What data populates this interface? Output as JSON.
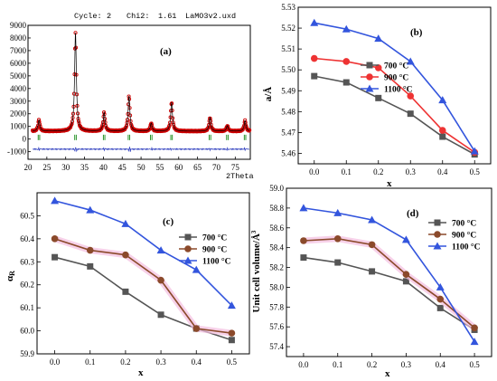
{
  "chart_data": [
    {
      "panel": "(a)",
      "type": "line",
      "header": {
        "cycle_label": "Cycle:",
        "cycle": "2",
        "chi2_label": "Chi2:",
        "chi2": "1.61",
        "file": "LaMO3v2.uxd"
      },
      "xlabel": "2Theta",
      "xlim": [
        20,
        79
      ],
      "ylim": [
        -1600,
        9000
      ],
      "x_ticks": [
        20,
        25,
        30,
        35,
        40,
        45,
        50,
        55,
        60,
        65,
        70,
        75
      ],
      "y_ticks": [
        -1000,
        0,
        1000,
        2000,
        3000,
        4000,
        5000,
        6000,
        7000,
        8000,
        9000
      ],
      "background": 620,
      "peaks": [
        {
          "x": 22.9,
          "y": 1500
        },
        {
          "x": 32.6,
          "y": 8400
        },
        {
          "x": 40.2,
          "y": 2100
        },
        {
          "x": 46.8,
          "y": 3400
        },
        {
          "x": 52.7,
          "y": 1250
        },
        {
          "x": 58.1,
          "y": 2900
        },
        {
          "x": 68.3,
          "y": 1700
        },
        {
          "x": 72.9,
          "y": 1050
        },
        {
          "x": 77.6,
          "y": 1450
        }
      ],
      "difference_level": -800,
      "bragg_marks_level": 130,
      "colors": {
        "observed": "#cc0000",
        "calculated": "#000000",
        "difference": "#2233bb",
        "bragg": "#118811"
      }
    },
    {
      "panel": "(b)",
      "type": "line",
      "xlabel": "x",
      "ylabel": "a/Å",
      "x": [
        0.0,
        0.1,
        0.2,
        0.3,
        0.4,
        0.5
      ],
      "x_ticks": [
        "0.0",
        "0.1",
        "0.2",
        "0.3",
        "0.4",
        "0.5"
      ],
      "xlim": [
        -0.05,
        0.55
      ],
      "ylim": [
        5.455,
        5.53
      ],
      "y_ticks": [
        "5.46",
        "5.47",
        "5.48",
        "5.49",
        "5.50",
        "5.51",
        "5.52",
        "5.53"
      ],
      "series": [
        {
          "name": "700 °C",
          "values": [
            5.497,
            5.494,
            5.4865,
            5.479,
            5.468,
            5.4595
          ],
          "color": "#555555",
          "marker": "square"
        },
        {
          "name": "900 °C",
          "values": [
            5.5055,
            5.504,
            5.501,
            5.4875,
            5.471,
            5.4605
          ],
          "color": "#ee3333",
          "marker": "circle"
        },
        {
          "name": "1100 °C",
          "values": [
            5.5225,
            5.5195,
            5.515,
            5.504,
            5.4855,
            5.461
          ],
          "color": "#3355dd",
          "marker": "triangle"
        }
      ]
    },
    {
      "panel": "(c)",
      "type": "line",
      "xlabel": "x",
      "ylabel": "αR",
      "x": [
        0.0,
        0.1,
        0.2,
        0.3,
        0.4,
        0.5
      ],
      "x_ticks": [
        "0.0",
        "0.1",
        "0.2",
        "0.3",
        "0.4",
        "0.5"
      ],
      "xlim": [
        -0.05,
        0.55
      ],
      "ylim": [
        59.9,
        60.6
      ],
      "y_ticks": [
        "59.9",
        "60.0",
        "60.1",
        "60.2",
        "60.3",
        "60.4",
        "60.5"
      ],
      "series": [
        {
          "name": "700 °C",
          "values": [
            60.32,
            60.28,
            60.17,
            60.07,
            60.01,
            59.96
          ],
          "color": "#555555",
          "marker": "square"
        },
        {
          "name": "900 °C",
          "values": [
            60.4,
            60.35,
            60.33,
            60.22,
            60.01,
            59.99
          ],
          "color": "#8b4a2b",
          "marker": "circle"
        },
        {
          "name": "1100 °C",
          "values": [
            60.565,
            60.525,
            60.465,
            60.35,
            60.265,
            60.11
          ],
          "color": "#3355dd",
          "marker": "triangle"
        }
      ]
    },
    {
      "panel": "(d)",
      "type": "line",
      "xlabel": "x",
      "ylabel": "Unit cell volume/Å3",
      "x": [
        0.0,
        0.1,
        0.2,
        0.3,
        0.4,
        0.5
      ],
      "x_ticks": [
        "0.0",
        "0.1",
        "0.2",
        "0.3",
        "0.4",
        "0.5"
      ],
      "xlim": [
        -0.05,
        0.55
      ],
      "ylim": [
        57.3,
        59.0
      ],
      "y_ticks": [
        "57.4",
        "57.6",
        "57.8",
        "58.0",
        "58.2",
        "58.4",
        "58.6",
        "58.8",
        "59.0"
      ],
      "series": [
        {
          "name": "700 °C",
          "values": [
            58.3,
            58.25,
            58.16,
            58.06,
            57.79,
            57.57
          ],
          "color": "#555555",
          "marker": "square"
        },
        {
          "name": "900 °C",
          "values": [
            58.47,
            58.49,
            58.43,
            58.13,
            57.88,
            57.59
          ],
          "color": "#8b4a2b",
          "marker": "circle"
        },
        {
          "name": "1100 °C",
          "values": [
            58.8,
            58.75,
            58.68,
            58.48,
            58.0,
            57.45
          ],
          "color": "#3355dd",
          "marker": "triangle"
        }
      ]
    }
  ]
}
